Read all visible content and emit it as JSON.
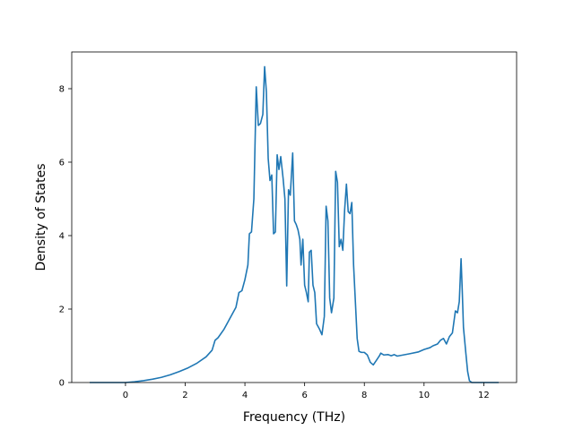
{
  "chart_data": {
    "type": "line",
    "title": "",
    "xlabel": "Frequency (THz)",
    "ylabel": "Density of States",
    "xlim": [
      -1.8,
      13.1
    ],
    "ylim": [
      0,
      9.0
    ],
    "xticks": [
      0,
      2,
      4,
      6,
      8,
      10,
      12
    ],
    "yticks": [
      0,
      2,
      4,
      6,
      8
    ],
    "grid": false,
    "legend": "none",
    "series": [
      {
        "name": "",
        "color": "#1f77b4",
        "points": [
          [
            -1.2,
            0
          ],
          [
            -0.6,
            0
          ],
          [
            0.0,
            0.0
          ],
          [
            0.3,
            0.02
          ],
          [
            0.6,
            0.05
          ],
          [
            0.9,
            0.09
          ],
          [
            1.2,
            0.14
          ],
          [
            1.5,
            0.21
          ],
          [
            1.8,
            0.3
          ],
          [
            2.1,
            0.4
          ],
          [
            2.4,
            0.53
          ],
          [
            2.7,
            0.7
          ],
          [
            2.9,
            0.88
          ],
          [
            3.0,
            1.15
          ],
          [
            3.1,
            1.22
          ],
          [
            3.3,
            1.45
          ],
          [
            3.5,
            1.75
          ],
          [
            3.7,
            2.05
          ],
          [
            3.8,
            2.45
          ],
          [
            3.9,
            2.5
          ],
          [
            4.0,
            2.8
          ],
          [
            4.1,
            3.2
          ],
          [
            4.15,
            4.05
          ],
          [
            4.22,
            4.1
          ],
          [
            4.3,
            5.0
          ],
          [
            4.38,
            8.05
          ],
          [
            4.45,
            7.0
          ],
          [
            4.52,
            7.05
          ],
          [
            4.6,
            7.3
          ],
          [
            4.66,
            8.6
          ],
          [
            4.72,
            7.9
          ],
          [
            4.78,
            6.1
          ],
          [
            4.84,
            5.5
          ],
          [
            4.9,
            5.65
          ],
          [
            4.96,
            4.05
          ],
          [
            5.02,
            4.1
          ],
          [
            5.08,
            6.2
          ],
          [
            5.14,
            5.8
          ],
          [
            5.2,
            6.15
          ],
          [
            5.28,
            5.55
          ],
          [
            5.34,
            5.0
          ],
          [
            5.4,
            2.63
          ],
          [
            5.46,
            5.25
          ],
          [
            5.52,
            5.1
          ],
          [
            5.6,
            6.25
          ],
          [
            5.66,
            4.4
          ],
          [
            5.72,
            4.3
          ],
          [
            5.78,
            4.15
          ],
          [
            5.84,
            3.9
          ],
          [
            5.88,
            3.2
          ],
          [
            5.94,
            3.9
          ],
          [
            6.0,
            2.65
          ],
          [
            6.06,
            2.45
          ],
          [
            6.12,
            2.2
          ],
          [
            6.16,
            3.55
          ],
          [
            6.22,
            3.6
          ],
          [
            6.28,
            2.65
          ],
          [
            6.34,
            2.45
          ],
          [
            6.4,
            1.6
          ],
          [
            6.5,
            1.45
          ],
          [
            6.58,
            1.3
          ],
          [
            6.66,
            1.8
          ],
          [
            6.72,
            4.8
          ],
          [
            6.78,
            4.4
          ],
          [
            6.84,
            2.3
          ],
          [
            6.9,
            1.9
          ],
          [
            6.98,
            2.3
          ],
          [
            7.04,
            5.75
          ],
          [
            7.1,
            5.45
          ],
          [
            7.16,
            3.7
          ],
          [
            7.22,
            3.9
          ],
          [
            7.28,
            3.6
          ],
          [
            7.34,
            4.7
          ],
          [
            7.4,
            5.4
          ],
          [
            7.46,
            4.65
          ],
          [
            7.52,
            4.6
          ],
          [
            7.58,
            4.9
          ],
          [
            7.64,
            3.2
          ],
          [
            7.7,
            2.2
          ],
          [
            7.76,
            1.2
          ],
          [
            7.82,
            0.85
          ],
          [
            7.9,
            0.82
          ],
          [
            8.0,
            0.82
          ],
          [
            8.1,
            0.75
          ],
          [
            8.2,
            0.55
          ],
          [
            8.3,
            0.48
          ],
          [
            8.4,
            0.6
          ],
          [
            8.5,
            0.72
          ],
          [
            8.55,
            0.8
          ],
          [
            8.65,
            0.75
          ],
          [
            8.8,
            0.76
          ],
          [
            8.9,
            0.73
          ],
          [
            9.0,
            0.76
          ],
          [
            9.1,
            0.72
          ],
          [
            9.3,
            0.75
          ],
          [
            9.5,
            0.78
          ],
          [
            9.8,
            0.83
          ],
          [
            10.0,
            0.9
          ],
          [
            10.2,
            0.95
          ],
          [
            10.3,
            1.0
          ],
          [
            10.45,
            1.05
          ],
          [
            10.55,
            1.15
          ],
          [
            10.65,
            1.2
          ],
          [
            10.75,
            1.05
          ],
          [
            10.85,
            1.25
          ],
          [
            10.95,
            1.35
          ],
          [
            11.05,
            1.95
          ],
          [
            11.12,
            1.9
          ],
          [
            11.18,
            2.2
          ],
          [
            11.24,
            3.37
          ],
          [
            11.28,
            2.5
          ],
          [
            11.32,
            1.5
          ],
          [
            11.4,
            0.8
          ],
          [
            11.46,
            0.3
          ],
          [
            11.52,
            0.05
          ],
          [
            11.6,
            0
          ],
          [
            12.0,
            0
          ],
          [
            12.5,
            0
          ]
        ]
      }
    ]
  }
}
